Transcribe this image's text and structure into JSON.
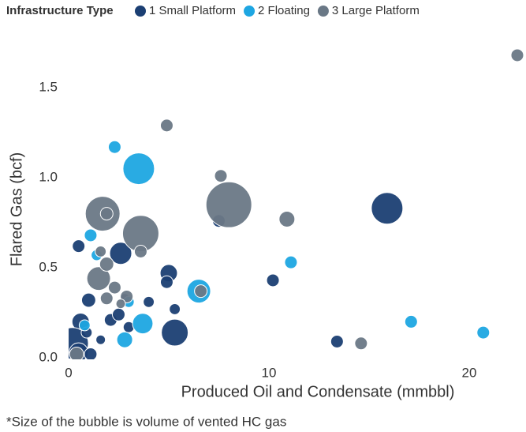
{
  "chart_data": {
    "type": "scatter",
    "legend_title": "Infrastructure Type",
    "xlabel": "Produced Oil and Condensate (mmbbl)",
    "ylabel": "Flared Gas (bcf)",
    "note": "*Size of the bubble is volume of vented HC gas",
    "xlim": [
      0,
      22.8
    ],
    "xticks": [
      0,
      10,
      20
    ],
    "ylim": [
      0,
      1.8
    ],
    "yticks": [
      {
        "value": 0,
        "label": "0.0"
      },
      0.5,
      {
        "value": 1,
        "label": "1.0"
      },
      1.5
    ],
    "series": [
      {
        "name": "1 Small Platform",
        "color": "#1b3f73",
        "x": [
          15.9,
          2.6,
          5.3,
          5.0,
          4.9,
          10.2,
          13.4,
          7.5,
          0.5,
          1.0,
          0.6,
          2.1,
          2.5,
          3.0,
          4.0,
          5.3,
          1.6,
          0.2,
          0.5,
          1.1,
          2.8,
          0.9
        ],
        "values": [
          0.83,
          0.58,
          0.14,
          0.47,
          0.42,
          0.43,
          0.09,
          0.76,
          0.62,
          0.32,
          0.2,
          0.21,
          0.24,
          0.17,
          0.31,
          0.27,
          0.1,
          0.08,
          0.03,
          0.02,
          0.33,
          0.14
        ],
        "sizes": [
          100,
          49,
          72,
          30,
          16,
          16,
          16,
          16,
          16,
          20,
          30,
          16,
          16,
          12,
          12,
          12,
          9,
          100,
          36,
          16,
          9,
          12
        ]
      },
      {
        "name": "2 Floating",
        "color": "#1ea6e2",
        "x": [
          3.5,
          6.5,
          3.7,
          2.3,
          1.1,
          11.1,
          17.1,
          20.7,
          2.8,
          1.4,
          3.0,
          0.8
        ],
        "values": [
          1.05,
          0.37,
          0.19,
          1.17,
          0.68,
          0.53,
          0.2,
          0.14,
          0.1,
          0.57,
          0.31,
          0.18
        ],
        "sizes": [
          100,
          56,
          42,
          16,
          16,
          16,
          16,
          16,
          25,
          12,
          12,
          12
        ]
      },
      {
        "name": "3 Large Platform",
        "color": "#6a7886",
        "x": [
          22.4,
          4.9,
          8.0,
          1.7,
          3.6,
          7.6,
          10.9,
          1.5,
          1.9,
          3.6,
          6.6,
          14.6,
          1.9,
          2.3,
          1.9,
          2.9,
          1.6,
          0.4,
          2.6
        ],
        "values": [
          1.68,
          1.29,
          0.85,
          0.8,
          0.69,
          1.01,
          0.77,
          0.44,
          0.52,
          0.59,
          0.37,
          0.08,
          0.8,
          0.39,
          0.33,
          0.34,
          0.59,
          0.02,
          0.3
        ],
        "sizes": [
          16,
          16,
          210,
          121,
          132,
          16,
          25,
          56,
          20,
          16,
          16,
          16,
          16,
          16,
          16,
          16,
          12,
          20,
          9
        ]
      }
    ]
  }
}
